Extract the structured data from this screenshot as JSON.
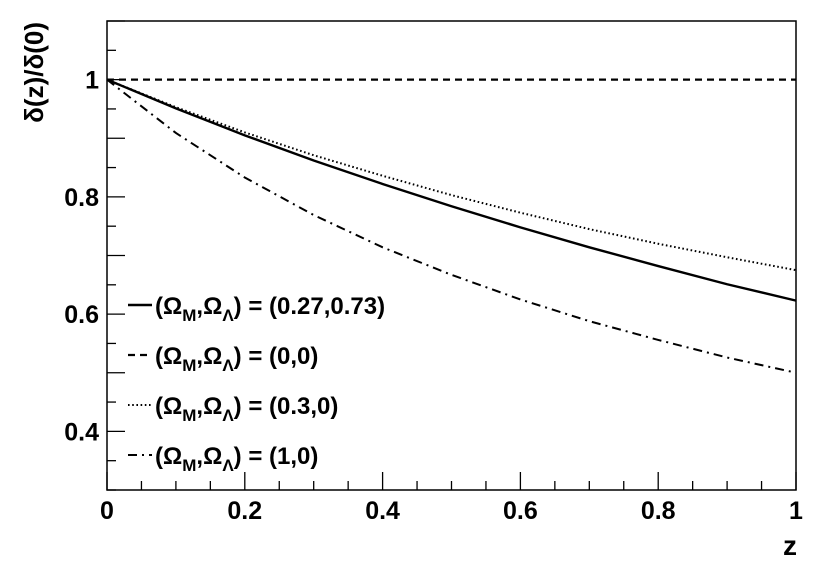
{
  "chart_data": {
    "type": "line",
    "xlabel": "z",
    "ylabel": "δ(z)/δ(0)",
    "xlim": [
      0,
      1
    ],
    "ylim": [
      0.3,
      1.1
    ],
    "x_ticks": [
      "0",
      "0.2",
      "0.4",
      "0.6",
      "0.8",
      "1"
    ],
    "y_ticks": [
      "0.4",
      "0.6",
      "0.8",
      "1"
    ],
    "legend_position": "bottom-left",
    "series": [
      {
        "name": "(Ω_M,Ω_Λ) = (0.27,0.73)",
        "legend": {
          "pre": "(Ω",
          "sub1": "M",
          "mid": ",Ω",
          "sub2": "Λ",
          "post": ") = (0.27,0.73)"
        },
        "style": "solid",
        "x": [
          0,
          0.1,
          0.2,
          0.3,
          0.4,
          0.5,
          0.6,
          0.7,
          0.8,
          0.9,
          1.0
        ],
        "y": [
          1.0,
          0.951,
          0.905,
          0.862,
          0.822,
          0.784,
          0.748,
          0.714,
          0.682,
          0.651,
          0.623
        ]
      },
      {
        "name": "(Ω_M,Ω_Λ) = (0,0)",
        "legend": {
          "pre": "(Ω",
          "sub1": "M",
          "mid": ",Ω",
          "sub2": "Λ",
          "post": ") = (0,0)"
        },
        "style": "dashed",
        "x": [
          0,
          1.0
        ],
        "y": [
          1.0,
          1.0
        ]
      },
      {
        "name": "(Ω_M,Ω_Λ) = (0.3,0)",
        "legend": {
          "pre": "(Ω",
          "sub1": "M",
          "mid": ",Ω",
          "sub2": "Λ",
          "post": ") = (0.3,0)"
        },
        "style": "dotted",
        "x": [
          0,
          0.1,
          0.2,
          0.3,
          0.4,
          0.5,
          0.6,
          0.7,
          0.8,
          0.9,
          1.0
        ],
        "y": [
          1.0,
          0.953,
          0.91,
          0.871,
          0.836,
          0.803,
          0.773,
          0.745,
          0.72,
          0.697,
          0.675
        ]
      },
      {
        "name": "(Ω_M,Ω_Λ) = (1,0)",
        "legend": {
          "pre": "(Ω",
          "sub1": "M",
          "mid": ",Ω",
          "sub2": "Λ",
          "post": ") = (1,0)"
        },
        "style": "dashdot",
        "x": [
          0,
          0.1,
          0.2,
          0.3,
          0.4,
          0.5,
          0.6,
          0.7,
          0.8,
          0.9,
          1.0
        ],
        "y": [
          1.0,
          0.909,
          0.833,
          0.769,
          0.714,
          0.667,
          0.625,
          0.588,
          0.556,
          0.526,
          0.5
        ]
      }
    ]
  }
}
